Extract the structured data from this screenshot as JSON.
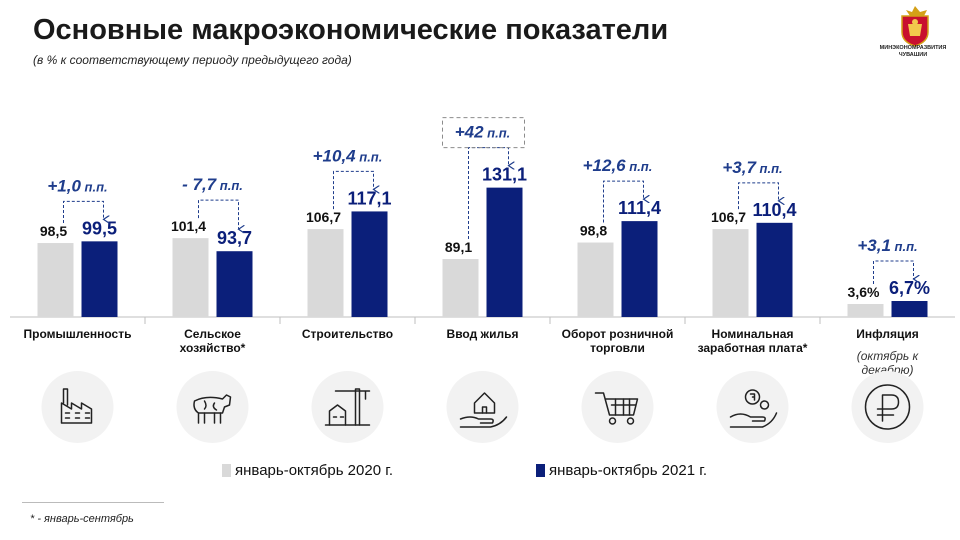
{
  "header": {
    "title": "Основные макроэкономические показатели",
    "subtitle": "(в % к соответствующему периоду предыдущего года)"
  },
  "logo": {
    "line1": "МИНЭКОНОМРАЗВИТИЯ",
    "line2": "ЧУВАШИИ",
    "icon": "coat-of-arms-icon"
  },
  "colors": {
    "prev": "#d9d9d9",
    "curr": "#0b1f7a",
    "accent": "#1f3d8c",
    "text": "#111111"
  },
  "chart_data": {
    "type": "bar",
    "title": "Основные макроэкономические показатели",
    "categories": [
      "Промышленность",
      "Сельское хозяйство*",
      "Строительство",
      "Ввод жилья",
      "Оборот розничной торговли",
      "Номинальная заработная плата*",
      "Инфляция"
    ],
    "category_lines": [
      [
        "Промышленность"
      ],
      [
        "Сельское",
        "хозяйство*"
      ],
      [
        "Строительство"
      ],
      [
        "Ввод жилья"
      ],
      [
        "Оборот розничной",
        "торговли"
      ],
      [
        "Номинальная",
        "заработная плата*"
      ],
      [
        "Инфляция"
      ]
    ],
    "category_note": {
      "index": 6,
      "lines": [
        "(октябрь к",
        "декабрю)"
      ]
    },
    "icons": [
      "factory-icon",
      "cow-icon",
      "construction-crane-icon",
      "house-in-hand-icon",
      "shopping-cart-icon",
      "money-in-hand-icon",
      "ruble-icon"
    ],
    "series": [
      {
        "name": "январь-октябрь 2020 г.",
        "values": [
          98.5,
          101.4,
          106.7,
          89.1,
          98.8,
          106.7,
          3.6
        ],
        "labels": [
          "98,5",
          "101,4",
          "106,7",
          "89,1",
          "98,8",
          "106,7",
          "3,6%"
        ]
      },
      {
        "name": "январь-октябрь 2021 г.",
        "values": [
          99.5,
          93.7,
          117.1,
          131.1,
          111.4,
          110.4,
          6.7
        ],
        "labels": [
          "99,5",
          "93,7",
          "117,1",
          "131,1",
          "111,4",
          "110,4",
          "6,7%"
        ]
      }
    ],
    "changes": [
      {
        "num": "+1,0",
        "unit": " п.п.",
        "boxed": false
      },
      {
        "num": "- 7,7",
        "unit": " п.п.",
        "boxed": false
      },
      {
        "num": "+10,4",
        "unit": " п.п.",
        "boxed": false
      },
      {
        "num": "+42",
        "unit": " п.п.",
        "boxed": true
      },
      {
        "num": "+12,6",
        "unit": " п.п.",
        "boxed": false
      },
      {
        "num": "+3,7",
        "unit": " п.п.",
        "boxed": false
      },
      {
        "num": "+3,1",
        "unit": " п.п.",
        "boxed": false
      }
    ],
    "legend": "bottom"
  },
  "footnote": "* - январь-сентябрь"
}
